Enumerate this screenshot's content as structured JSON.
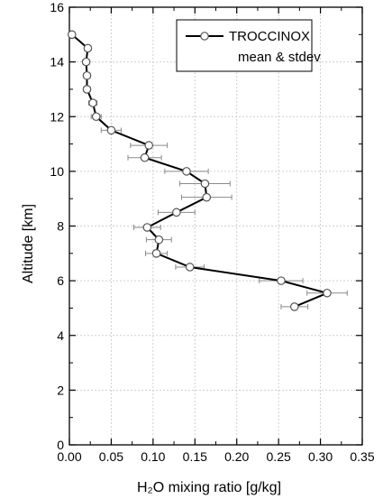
{
  "chart_data": {
    "type": "line",
    "xlabel": "H₂O mixing ratio [g/kg]",
    "ylabel": "Altitude [km]",
    "xlim": [
      0.0,
      0.35
    ],
    "ylim": [
      0,
      16
    ],
    "xticks": [
      "0.00",
      "0.05",
      "0.10",
      "0.15",
      "0.20",
      "0.25",
      "0.30",
      "0.35"
    ],
    "yticks": [
      "0",
      "2",
      "4",
      "6",
      "8",
      "10",
      "12",
      "14",
      "16"
    ],
    "grid": true,
    "legend_position": "top-right",
    "legend": {
      "series_label": "TROCCINOX",
      "caption": "mean & stdev"
    },
    "series": [
      {
        "name": "TROCCINOX",
        "color": "#000000",
        "marker": "open-circle",
        "points": [
          {
            "x": 0.003,
            "y": 15.0,
            "err": 0.003
          },
          {
            "x": 0.022,
            "y": 14.5,
            "err": 0.004
          },
          {
            "x": 0.02,
            "y": 14.0,
            "err": 0.004
          },
          {
            "x": 0.021,
            "y": 13.5,
            "err": 0.004
          },
          {
            "x": 0.021,
            "y": 13.0,
            "err": 0.004
          },
          {
            "x": 0.028,
            "y": 12.5,
            "err": 0.005
          },
          {
            "x": 0.032,
            "y": 12.0,
            "err": 0.006
          },
          {
            "x": 0.05,
            "y": 11.5,
            "err": 0.012
          },
          {
            "x": 0.095,
            "y": 10.95,
            "err": 0.022
          },
          {
            "x": 0.09,
            "y": 10.5,
            "err": 0.02
          },
          {
            "x": 0.14,
            "y": 10.0,
            "err": 0.026
          },
          {
            "x": 0.162,
            "y": 9.55,
            "err": 0.03
          },
          {
            "x": 0.164,
            "y": 9.05,
            "err": 0.03
          },
          {
            "x": 0.128,
            "y": 8.5,
            "err": 0.022
          },
          {
            "x": 0.093,
            "y": 7.95,
            "err": 0.016
          },
          {
            "x": 0.107,
            "y": 7.5,
            "err": 0.015
          },
          {
            "x": 0.104,
            "y": 7.0,
            "err": 0.013
          },
          {
            "x": 0.144,
            "y": 6.5,
            "err": 0.017
          },
          {
            "x": 0.253,
            "y": 6.0,
            "err": 0.026
          },
          {
            "x": 0.308,
            "y": 5.55,
            "err": 0.024
          },
          {
            "x": 0.269,
            "y": 5.05,
            "err": 0.016
          }
        ]
      }
    ]
  }
}
